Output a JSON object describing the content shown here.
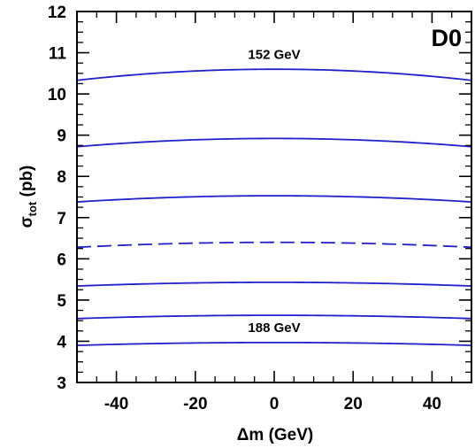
{
  "chart_data": {
    "type": "line",
    "title": "",
    "experiment_label": "D0",
    "xlabel_prefix": "Δm",
    "xlabel_suffix": " (GeV)",
    "ylabel_main": "σ",
    "ylabel_sub": "tot",
    "ylabel_suffix": " (pb)",
    "xlim": [
      -50,
      50
    ],
    "ylim": [
      3,
      12
    ],
    "x_ticks": [
      -40,
      -20,
      0,
      20,
      40
    ],
    "x_tick_labels": [
      "-40",
      "-20",
      "0",
      "20",
      "40"
    ],
    "y_ticks": [
      3,
      4,
      5,
      6,
      7,
      8,
      9,
      10,
      11,
      12
    ],
    "y_tick_labels": [
      "3",
      "4",
      "5",
      "6",
      "7",
      "8",
      "9",
      "10",
      "11",
      "12"
    ],
    "x_minor_step": 5,
    "y_minor_step": 0.25,
    "grid": false,
    "line_color": "#2020cc",
    "series": [
      {
        "name": "152 GeV",
        "style": "solid",
        "x": [
          -50,
          -25,
          0,
          25,
          50
        ],
        "y": [
          10.33,
          10.53,
          10.6,
          10.53,
          10.33
        ]
      },
      {
        "style": "solid",
        "x": [
          -50,
          -25,
          0,
          25,
          50
        ],
        "y": [
          8.72,
          8.87,
          8.92,
          8.87,
          8.72
        ]
      },
      {
        "style": "solid",
        "x": [
          -50,
          -25,
          0,
          25,
          50
        ],
        "y": [
          7.38,
          7.5,
          7.53,
          7.5,
          7.38
        ]
      },
      {
        "style": "dashed",
        "x": [
          -50,
          -25,
          0,
          25,
          50
        ],
        "y": [
          6.28,
          6.37,
          6.4,
          6.37,
          6.28
        ]
      },
      {
        "style": "solid",
        "x": [
          -50,
          -25,
          0,
          25,
          50
        ],
        "y": [
          5.34,
          5.41,
          5.43,
          5.41,
          5.34
        ]
      },
      {
        "style": "solid",
        "x": [
          -50,
          -25,
          0,
          25,
          50
        ],
        "y": [
          4.55,
          4.61,
          4.63,
          4.61,
          4.55
        ]
      },
      {
        "name": "188 GeV",
        "style": "solid",
        "x": [
          -50,
          -25,
          0,
          25,
          50
        ],
        "y": [
          3.9,
          3.95,
          3.97,
          3.95,
          3.9
        ]
      }
    ],
    "annotations": [
      {
        "text": "152 GeV",
        "x": 0,
        "y": 10.85
      },
      {
        "text": "188 GeV",
        "x": 0,
        "y": 4.22
      }
    ]
  }
}
